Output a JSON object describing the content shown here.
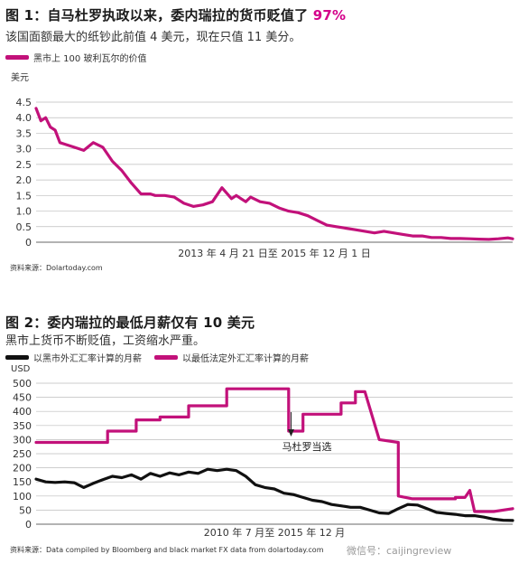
{
  "chart_data": [
    {
      "type": "line",
      "title_prefix": "图 1：",
      "title_main": "自马杜罗执政以来，委内瑞拉的货币贬值了",
      "title_num": "97%",
      "subtitle": "该国面额最大的纸钞此前值 4 美元，现在只值 11 美分。",
      "ylabel": "美元",
      "xlabel": "2013 年 4 月 21 日至 2015 年 12 月 1 日",
      "ylim": [
        0,
        4.5
      ],
      "yticks": [
        "0",
        "0.5",
        "1.0",
        "1.5",
        "2.0",
        "2.5",
        "3.0",
        "3.5",
        "4.0",
        "4.5"
      ],
      "grid": true,
      "legend_position": "top-left",
      "source": "资料来源：Dolartoday.com",
      "series": [
        {
          "name": "黑市上 100 玻利瓦尔的价值",
          "color": "#c2117a",
          "x": [
            0.0,
            0.01,
            0.02,
            0.03,
            0.04,
            0.05,
            0.06,
            0.08,
            0.1,
            0.12,
            0.14,
            0.16,
            0.18,
            0.2,
            0.22,
            0.24,
            0.25,
            0.27,
            0.29,
            0.31,
            0.33,
            0.35,
            0.37,
            0.39,
            0.41,
            0.42,
            0.43,
            0.44,
            0.45,
            0.47,
            0.49,
            0.51,
            0.53,
            0.55,
            0.57,
            0.59,
            0.61,
            0.63,
            0.65,
            0.67,
            0.69,
            0.71,
            0.73,
            0.75,
            0.77,
            0.79,
            0.81,
            0.83,
            0.85,
            0.87,
            0.89,
            0.91,
            0.93,
            0.95,
            0.97,
            0.99,
            1.0
          ],
          "values": [
            4.3,
            3.9,
            4.0,
            3.7,
            3.6,
            3.2,
            3.15,
            3.05,
            2.95,
            3.2,
            3.05,
            2.6,
            2.3,
            1.9,
            1.55,
            1.55,
            1.5,
            1.5,
            1.45,
            1.25,
            1.15,
            1.2,
            1.3,
            1.75,
            1.4,
            1.5,
            1.4,
            1.3,
            1.45,
            1.3,
            1.25,
            1.1,
            1.0,
            0.95,
            0.85,
            0.7,
            0.55,
            0.5,
            0.45,
            0.4,
            0.35,
            0.3,
            0.35,
            0.3,
            0.25,
            0.2,
            0.2,
            0.15,
            0.15,
            0.12,
            0.12,
            0.11,
            0.1,
            0.09,
            0.11,
            0.14,
            0.11
          ]
        }
      ]
    },
    {
      "type": "line",
      "title_prefix": "图 2：",
      "title_main": "委内瑞拉的最低月薪仅有 10 美元",
      "subtitle": "黑市上货币不断贬值，工资缩水严重。",
      "ylabel": "USD",
      "xlabel": "2010 年 7 月至 2015 年 12 月",
      "ylim": [
        0,
        500
      ],
      "yticks": [
        "0",
        "50",
        "100",
        "150",
        "200",
        "250",
        "300",
        "350",
        "400",
        "450",
        "500"
      ],
      "grid": true,
      "legend_position": "top-left",
      "annotation": "马杜罗当选",
      "source": "资料来源：Data compiled by Bloomberg and black market FX data from dolartoday.com",
      "series": [
        {
          "name": "以黑市外汇汇率计算的月薪",
          "color": "#111111",
          "x": [
            0.0,
            0.02,
            0.04,
            0.06,
            0.08,
            0.1,
            0.12,
            0.14,
            0.16,
            0.18,
            0.2,
            0.22,
            0.24,
            0.26,
            0.28,
            0.3,
            0.32,
            0.34,
            0.36,
            0.38,
            0.4,
            0.42,
            0.44,
            0.46,
            0.48,
            0.5,
            0.52,
            0.54,
            0.56,
            0.58,
            0.6,
            0.62,
            0.64,
            0.66,
            0.68,
            0.7,
            0.72,
            0.74,
            0.76,
            0.78,
            0.8,
            0.82,
            0.84,
            0.86,
            0.88,
            0.9,
            0.92,
            0.94,
            0.96,
            0.98,
            1.0
          ],
          "values": [
            160,
            150,
            148,
            150,
            147,
            130,
            145,
            158,
            170,
            165,
            175,
            160,
            180,
            170,
            182,
            175,
            185,
            180,
            195,
            190,
            195,
            190,
            170,
            140,
            130,
            125,
            110,
            105,
            95,
            85,
            80,
            70,
            65,
            60,
            60,
            50,
            40,
            38,
            55,
            70,
            68,
            55,
            42,
            38,
            35,
            30,
            30,
            25,
            18,
            14,
            13
          ]
        },
        {
          "name": "以最低法定外汇汇率计算的月薪",
          "color": "#c2117a",
          "x": [
            0.0,
            0.15,
            0.15,
            0.21,
            0.21,
            0.26,
            0.26,
            0.32,
            0.32,
            0.4,
            0.4,
            0.45,
            0.45,
            0.53,
            0.53,
            0.56,
            0.56,
            0.58,
            0.58,
            0.64,
            0.64,
            0.67,
            0.67,
            0.69,
            0.69,
            0.72,
            0.72,
            0.76,
            0.76,
            0.79,
            0.79,
            0.88,
            0.88,
            0.9,
            0.91,
            0.92,
            0.96,
            1.0
          ],
          "values": [
            290,
            290,
            330,
            330,
            370,
            370,
            380,
            380,
            420,
            420,
            480,
            480,
            480,
            480,
            330,
            330,
            390,
            390,
            390,
            390,
            430,
            430,
            470,
            470,
            470,
            300,
            300,
            290,
            100,
            90,
            90,
            90,
            95,
            95,
            120,
            45,
            45,
            55
          ]
        }
      ]
    }
  ],
  "watermark": "微信号：caijingreview"
}
